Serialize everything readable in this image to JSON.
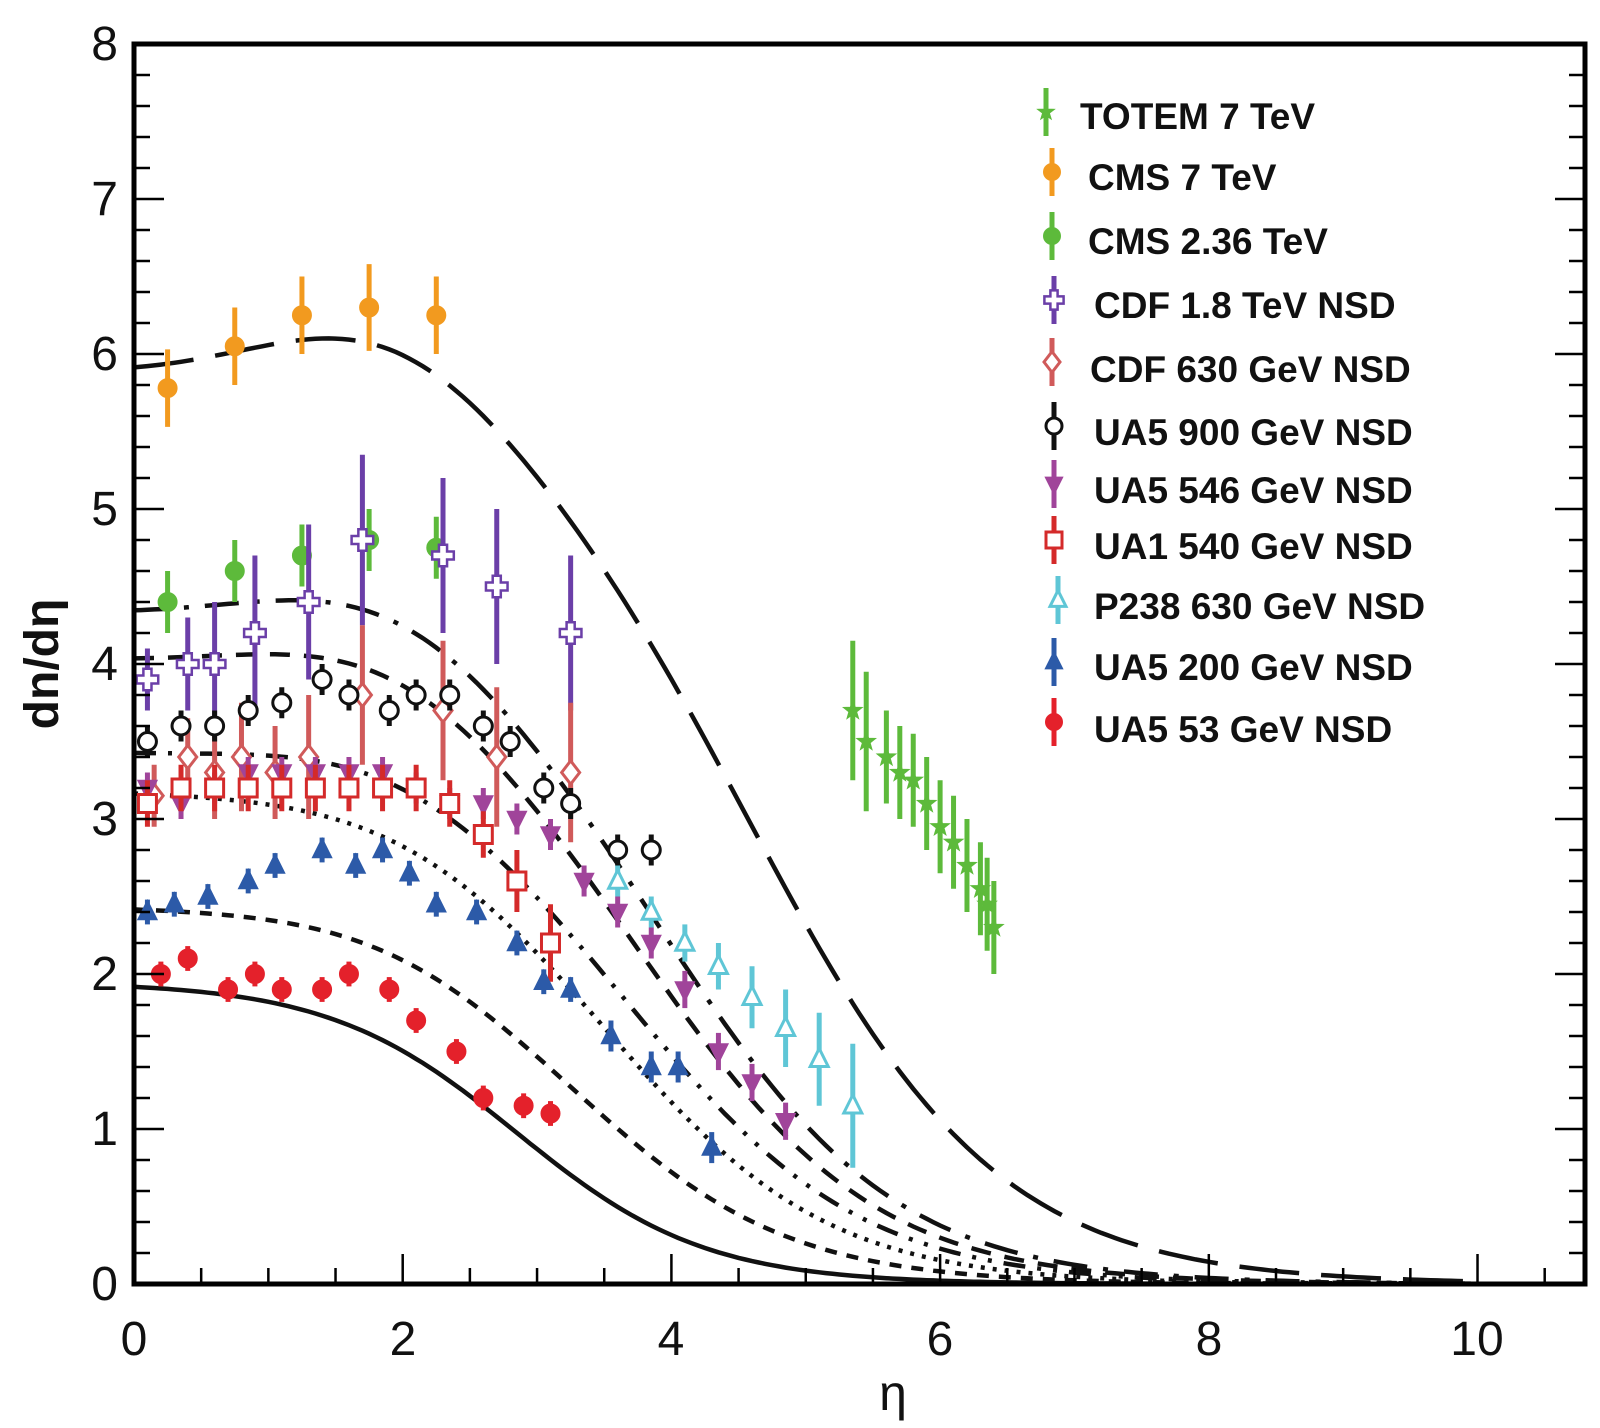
{
  "chart_data": {
    "type": "scatter",
    "xlabel": "η",
    "ylabel": "dn/dη",
    "xlim": [
      0,
      10.8
    ],
    "ylim": [
      0,
      8
    ],
    "x_ticks": [
      "0",
      "2",
      "4",
      "6",
      "8",
      "10"
    ],
    "y_ticks": [
      "0",
      "1",
      "2",
      "3",
      "4",
      "5",
      "6",
      "7",
      "8"
    ],
    "legend_position": "top-right",
    "series": [
      {
        "name": "TOTEM 7 TeV",
        "color": "#5dba3b",
        "marker": "star",
        "x": [
          5.35,
          5.45,
          5.6,
          5.7,
          5.8,
          5.9,
          6.0,
          6.1,
          6.2,
          6.3,
          6.35,
          6.4
        ],
        "y": [
          3.7,
          3.5,
          3.4,
          3.3,
          3.25,
          3.1,
          2.95,
          2.85,
          2.7,
          2.55,
          2.45,
          2.3
        ],
        "err": [
          0.45,
          0.45,
          0.3,
          0.3,
          0.3,
          0.3,
          0.3,
          0.3,
          0.3,
          0.3,
          0.3,
          0.3
        ]
      },
      {
        "name": "CMS 7 TeV",
        "color": "#f29a1f",
        "marker": "circle",
        "x": [
          0.25,
          0.75,
          1.25,
          1.75,
          2.25
        ],
        "y": [
          5.78,
          6.05,
          6.25,
          6.3,
          6.25
        ],
        "err": [
          0.25,
          0.25,
          0.25,
          0.28,
          0.25
        ]
      },
      {
        "name": "CMS 2.36 TeV",
        "color": "#5dba3b",
        "marker": "circle",
        "x": [
          0.25,
          0.75,
          1.25,
          1.75,
          2.25
        ],
        "y": [
          4.4,
          4.6,
          4.7,
          4.8,
          4.75
        ],
        "err": [
          0.2,
          0.2,
          0.2,
          0.2,
          0.2
        ]
      },
      {
        "name": "CDF 1.8 TeV NSD",
        "color": "#6b3fa8",
        "marker": "cross-open",
        "x": [
          0.1,
          0.4,
          0.6,
          0.9,
          1.3,
          1.7,
          2.3,
          2.7,
          3.25
        ],
        "y": [
          3.9,
          4.0,
          4.0,
          4.2,
          4.4,
          4.8,
          4.7,
          4.5,
          4.2
        ],
        "err": [
          0.2,
          0.3,
          0.4,
          0.5,
          0.5,
          0.55,
          0.5,
          0.5,
          0.5
        ]
      },
      {
        "name": "CDF 630 GeV NSD",
        "color": "#d05a5a",
        "marker": "diamond-open",
        "x": [
          0.15,
          0.4,
          0.6,
          0.8,
          1.05,
          1.3,
          1.7,
          2.3,
          2.7,
          3.25
        ],
        "y": [
          3.15,
          3.4,
          3.3,
          3.4,
          3.3,
          3.4,
          3.8,
          3.7,
          3.4,
          3.3
        ],
        "err": [
          0.2,
          0.25,
          0.3,
          0.35,
          0.3,
          0.4,
          0.45,
          0.45,
          0.45,
          0.45
        ]
      },
      {
        "name": "UA5 900 GeV NSD",
        "color": "#111111",
        "marker": "circle-open",
        "x": [
          0.1,
          0.35,
          0.6,
          0.85,
          1.1,
          1.4,
          1.6,
          1.9,
          2.1,
          2.35,
          2.6,
          2.8,
          3.05,
          3.25,
          3.6,
          3.85
        ],
        "y": [
          3.5,
          3.6,
          3.6,
          3.7,
          3.75,
          3.9,
          3.8,
          3.7,
          3.8,
          3.8,
          3.6,
          3.5,
          3.2,
          3.1,
          2.8,
          2.8
        ],
        "err": [
          0.1,
          0.1,
          0.1,
          0.1,
          0.1,
          0.1,
          0.1,
          0.1,
          0.1,
          0.1,
          0.1,
          0.1,
          0.1,
          0.1,
          0.1,
          0.1
        ]
      },
      {
        "name": "UA5 546 GeV NSD",
        "color": "#a0449a",
        "marker": "triangle-down",
        "x": [
          0.1,
          0.35,
          0.6,
          0.85,
          1.1,
          1.35,
          1.6,
          1.85,
          2.1,
          2.35,
          2.6,
          2.85,
          3.1,
          3.35,
          3.6,
          3.85,
          4.1,
          4.35,
          4.6,
          4.85
        ],
        "y": [
          3.2,
          3.1,
          3.2,
          3.3,
          3.3,
          3.3,
          3.3,
          3.3,
          3.2,
          3.1,
          3.1,
          3.0,
          2.9,
          2.6,
          2.4,
          2.2,
          1.9,
          1.5,
          1.3,
          1.05
        ],
        "err": [
          0.1,
          0.1,
          0.1,
          0.1,
          0.1,
          0.1,
          0.1,
          0.1,
          0.1,
          0.1,
          0.1,
          0.1,
          0.1,
          0.1,
          0.1,
          0.1,
          0.12,
          0.12,
          0.12,
          0.12
        ]
      },
      {
        "name": "UA1 540 GeV NSD",
        "color": "#d42a2a",
        "marker": "square-open",
        "x": [
          0.1,
          0.35,
          0.6,
          0.85,
          1.1,
          1.35,
          1.6,
          1.85,
          2.1,
          2.35,
          2.6,
          2.85,
          3.1
        ],
        "y": [
          3.1,
          3.2,
          3.2,
          3.2,
          3.2,
          3.2,
          3.2,
          3.2,
          3.2,
          3.1,
          2.9,
          2.6,
          2.2
        ],
        "err": [
          0.15,
          0.15,
          0.15,
          0.15,
          0.15,
          0.15,
          0.15,
          0.15,
          0.15,
          0.15,
          0.15,
          0.2,
          0.25
        ]
      },
      {
        "name": "P238 630 GeV NSD",
        "color": "#5fc6d6",
        "marker": "triangle-open",
        "x": [
          3.6,
          3.85,
          4.1,
          4.35,
          4.6,
          4.85,
          5.1,
          5.35
        ],
        "y": [
          2.6,
          2.4,
          2.2,
          2.05,
          1.85,
          1.65,
          1.45,
          1.15
        ],
        "err": [
          0.1,
          0.1,
          0.12,
          0.15,
          0.2,
          0.25,
          0.3,
          0.4
        ]
      },
      {
        "name": "UA5 200 GeV NSD",
        "color": "#2c5aa8",
        "marker": "triangle-up",
        "x": [
          0.1,
          0.3,
          0.55,
          0.85,
          1.05,
          1.4,
          1.65,
          1.85,
          2.05,
          2.25,
          2.55,
          2.85,
          3.05,
          3.25,
          3.55,
          3.85,
          4.05,
          4.3
        ],
        "y": [
          2.4,
          2.45,
          2.5,
          2.6,
          2.7,
          2.8,
          2.7,
          2.8,
          2.65,
          2.45,
          2.4,
          2.2,
          1.95,
          1.9,
          1.6,
          1.4,
          1.4,
          0.88
        ],
        "err": [
          0.08,
          0.08,
          0.08,
          0.08,
          0.08,
          0.08,
          0.08,
          0.08,
          0.08,
          0.08,
          0.08,
          0.08,
          0.08,
          0.08,
          0.1,
          0.1,
          0.1,
          0.1
        ]
      },
      {
        "name": "UA5 53 GeV NSD",
        "color": "#e4212b",
        "marker": "circle",
        "x": [
          0.2,
          0.4,
          0.7,
          0.9,
          1.1,
          1.4,
          1.6,
          1.9,
          2.1,
          2.4,
          2.6,
          2.9,
          3.1
        ],
        "y": [
          2.0,
          2.1,
          1.9,
          2.0,
          1.9,
          1.9,
          2.0,
          1.9,
          1.7,
          1.5,
          1.2,
          1.15,
          1.1
        ],
        "err": [
          0.08,
          0.08,
          0.08,
          0.08,
          0.08,
          0.08,
          0.08,
          0.08,
          0.08,
          0.08,
          0.08,
          0.08,
          0.08
        ]
      }
    ],
    "curves": [
      {
        "name": "fit-totem-cms7",
        "style": "longdash",
        "y0": 5.9,
        "peak": 6.35,
        "eta0": 4.6,
        "width": 0.92
      },
      {
        "name": "fit-cms236",
        "style": "dashdot",
        "y0": 4.35,
        "peak": 4.65,
        "eta0": 4.0,
        "width": 0.85
      },
      {
        "name": "fit-cdf18",
        "style": "dash",
        "y0": 4.05,
        "peak": 4.3,
        "eta0": 3.85,
        "width": 0.85
      },
      {
        "name": "fit-ua5-900",
        "style": "dashdotdot",
        "y0": 3.45,
        "peak": 3.6,
        "eta0": 3.75,
        "width": 0.85
      },
      {
        "name": "fit-ua5-546",
        "style": "dot",
        "y0": 3.2,
        "peak": 3.25,
        "eta0": 3.55,
        "width": 0.82
      },
      {
        "name": "fit-ua5-200",
        "style": "dashshort",
        "y0": 2.45,
        "peak": 2.5,
        "eta0": 3.3,
        "width": 0.8
      },
      {
        "name": "fit-ua5-53",
        "style": "solid",
        "y0": 1.95,
        "peak": 1.95,
        "eta0": 2.85,
        "width": 0.7
      }
    ]
  }
}
